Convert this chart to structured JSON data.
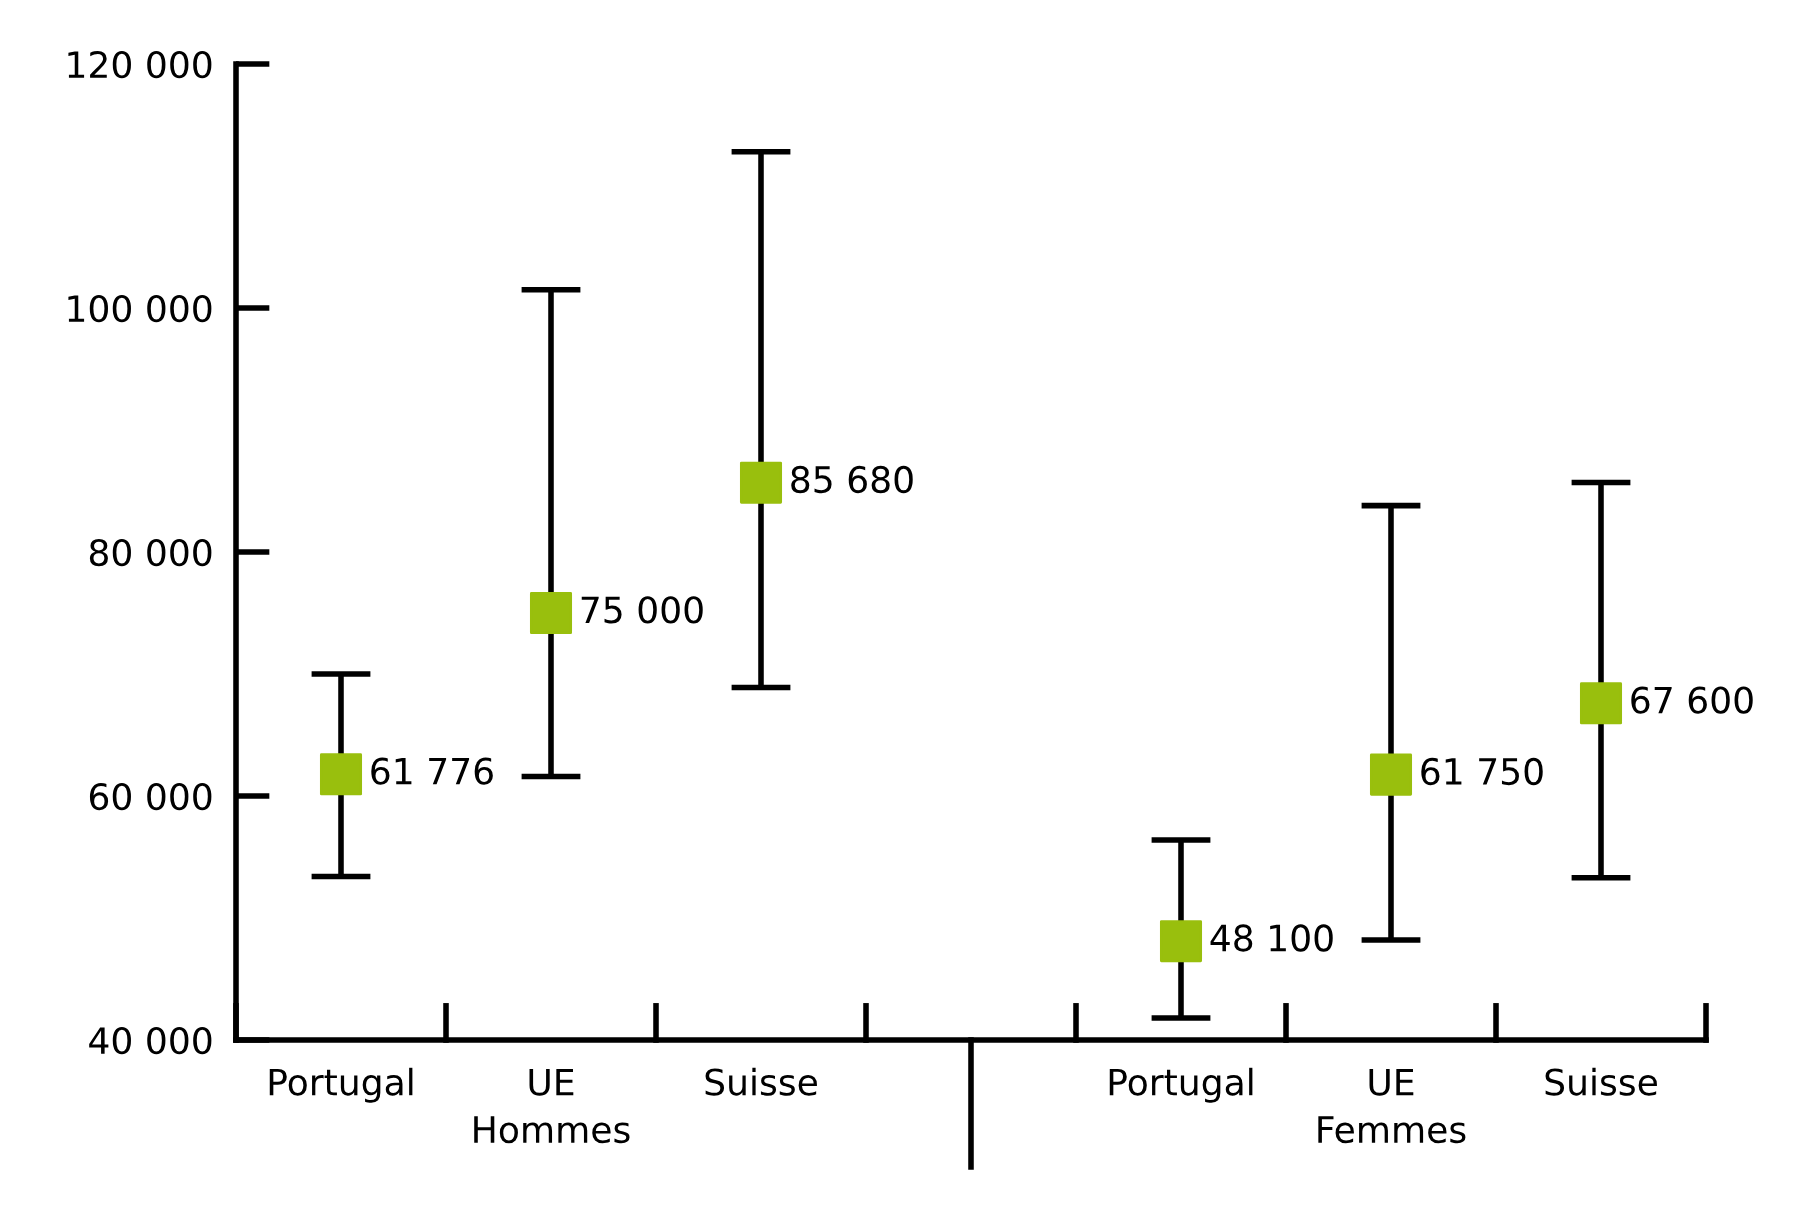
{
  "chart_data": {
    "type": "scatter",
    "categories": [
      "Portugal",
      "UE",
      "Suisse",
      null,
      "Portugal",
      "UE",
      "Suisse"
    ],
    "series": [
      {
        "color": "#99bf0d",
        "values": [
          61776,
          75000,
          85680,
          null,
          48100,
          61750,
          67600
        ],
        "errors": [
          [
            53400,
            70000
          ],
          [
            61600,
            101500
          ],
          [
            68900,
            112800
          ],
          null,
          [
            41800,
            56400
          ],
          [
            48200,
            83800
          ],
          [
            53300,
            85700
          ]
        ]
      }
    ],
    "value_labels": [
      "61 776",
      "75 000",
      "85 680",
      null,
      "48 100",
      "61 750",
      "67 600"
    ],
    "marker": "square",
    "ylim": [
      40000,
      120000
    ],
    "yticks": [
      {
        "value": 40000,
        "label": "40 000"
      },
      {
        "value": 60000,
        "label": "60 000"
      },
      {
        "value": 80000,
        "label": "80 000"
      },
      {
        "value": 100000,
        "label": "100 000"
      },
      {
        "value": 120000,
        "label": "120 000"
      }
    ],
    "annotations": [
      "Hommes",
      "Femmes"
    ],
    "grid": false,
    "legend": false
  }
}
